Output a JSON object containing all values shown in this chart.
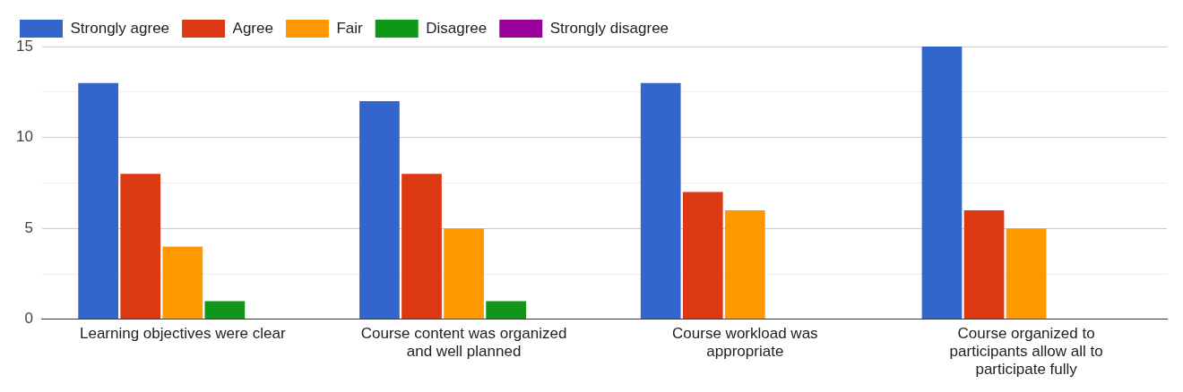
{
  "chart_data": {
    "type": "bar",
    "categories": [
      "Learning objectives were clear",
      "Course content was organized and well planned",
      "Course workload was appropriate",
      "Course organized to participants allow all to participate fully"
    ],
    "series": [
      {
        "name": "Strongly agree",
        "color": "#3366cc",
        "values": [
          13,
          12,
          13,
          15
        ]
      },
      {
        "name": "Agree",
        "color": "#dc3912",
        "values": [
          8,
          8,
          7,
          6
        ]
      },
      {
        "name": "Fair",
        "color": "#ff9900",
        "values": [
          4,
          5,
          6,
          5
        ]
      },
      {
        "name": "Disagree",
        "color": "#109618",
        "values": [
          1,
          1,
          0,
          0
        ]
      },
      {
        "name": "Strongly disagree",
        "color": "#990099",
        "values": [
          0,
          0,
          0,
          0
        ]
      }
    ],
    "ylim": [
      0,
      15
    ],
    "yticks": [
      0,
      {
        "value": 2.5,
        "label": null
      },
      5,
      {
        "value": 7.5,
        "label": null
      },
      10,
      {
        "value": 12.5,
        "label": null
      },
      15
    ],
    "grid": "y",
    "legend": "top left"
  }
}
